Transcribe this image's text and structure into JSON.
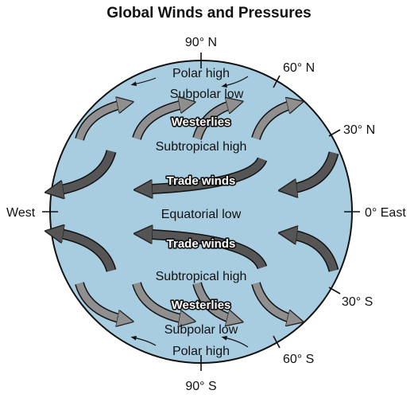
{
  "title": "Global Winds and Pressures",
  "colors": {
    "globe": "#a9cde0",
    "arrow_dark": "#555555",
    "arrow_light": "#8f8f8f",
    "outline": "#111111"
  },
  "compass": {
    "n90": "90° N",
    "n60": "60° N",
    "n30": "30° N",
    "west": "West",
    "east": "0° East",
    "s30": "30° S",
    "s60": "60° S",
    "s90": "90° S"
  },
  "zones": {
    "polar_high_n": "Polar high",
    "subpolar_low_n": "Subpolar low",
    "westerlies_n": "Westerlies",
    "subtropical_high_n": "Subtropical high",
    "trade_winds_n": "Trade winds",
    "equatorial_low": "Equatorial low",
    "trade_winds_s": "Trade winds",
    "subtropical_high_s": "Subtropical high",
    "westerlies_s": "Westerlies",
    "subpolar_low_s": "Subpolar low",
    "polar_high_s": "Polar high"
  }
}
